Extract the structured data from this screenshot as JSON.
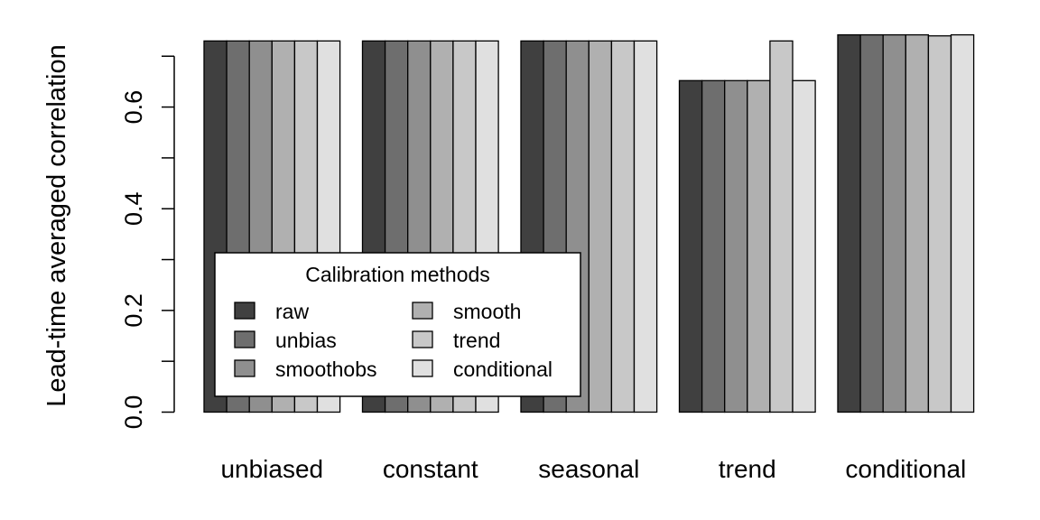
{
  "chart_data": {
    "type": "bar",
    "ylabel": "Lead-time averaged correlation",
    "xlabel": "",
    "ylim": [
      0,
      0.7
    ],
    "yticks": [
      0.0,
      0.2,
      0.4,
      0.6
    ],
    "ytick_labels": [
      "0.0",
      "0.2",
      "0.4",
      "0.6"
    ],
    "yticks_unlabeled": [
      0.1,
      0.3,
      0.5,
      0.7
    ],
    "categories": [
      "unbiased",
      "constant",
      "seasonal",
      "trend",
      "conditional"
    ],
    "series": [
      {
        "name": "raw",
        "color": "#404040",
        "values": [
          0.73,
          0.73,
          0.73,
          0.652,
          0.742
        ]
      },
      {
        "name": "unbias",
        "color": "#6e6e6e",
        "values": [
          0.73,
          0.73,
          0.73,
          0.652,
          0.742
        ]
      },
      {
        "name": "smoothobs",
        "color": "#8f8f8f",
        "values": [
          0.73,
          0.73,
          0.73,
          0.652,
          0.742
        ]
      },
      {
        "name": "smooth",
        "color": "#b0b0b0",
        "values": [
          0.73,
          0.73,
          0.73,
          0.652,
          0.742
        ]
      },
      {
        "name": "trend",
        "color": "#c8c8c8",
        "values": [
          0.73,
          0.73,
          0.73,
          0.73,
          0.74
        ]
      },
      {
        "name": "conditional",
        "color": "#e0e0e0",
        "values": [
          0.73,
          0.73,
          0.73,
          0.652,
          0.742
        ]
      }
    ],
    "legend": {
      "title": "Calibration methods",
      "placement": "bottom-left",
      "columns": 2
    },
    "grid": false
  }
}
